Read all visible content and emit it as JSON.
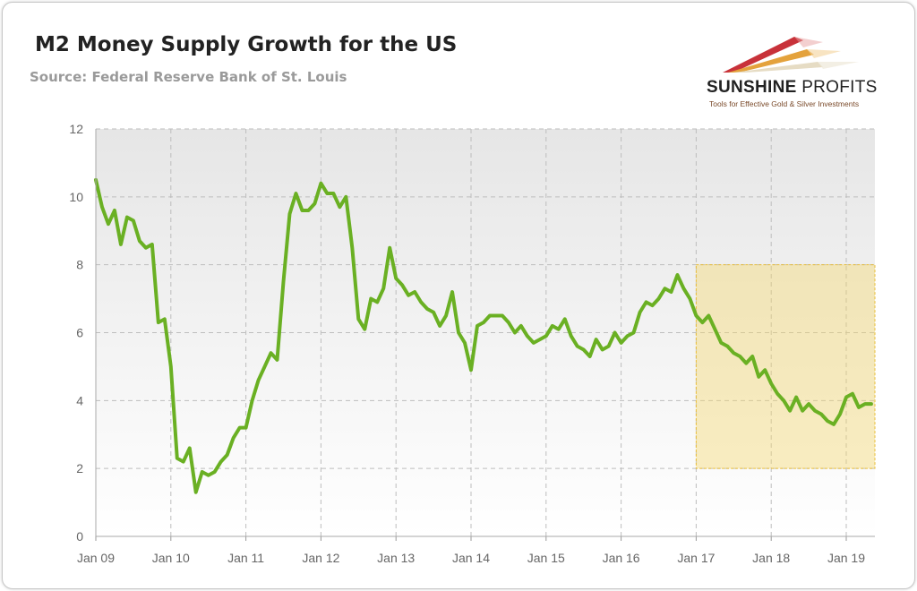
{
  "header": {
    "title": "M2 Money Supply Growth for the US",
    "subtitle": "Source: Federal Reserve Bank of St. Louis"
  },
  "logo": {
    "name_bold": "SUNSHINE",
    "name_light": "PROFITS",
    "tagline": "Tools for Effective Gold & Silver Investments"
  },
  "chart_data": {
    "type": "line",
    "title": "M2 Money Supply Growth for the US",
    "xlabel": "",
    "ylabel": "",
    "ylim": [
      0,
      12
    ],
    "y_ticks": [
      "0",
      "2",
      "4",
      "6",
      "8",
      "10",
      "12"
    ],
    "x_ticks": [
      "Jan 09",
      "Jan 10",
      "Jan 11",
      "Jan 12",
      "Jan 13",
      "Jan 14",
      "Jan 15",
      "Jan 16",
      "Jan 17",
      "Jan 18",
      "Jan 19"
    ],
    "grid": true,
    "line_color": "#6ab023",
    "highlight": {
      "x_start": "2017-01",
      "x_end": "2019-05",
      "y_range": [
        2,
        8
      ],
      "color": "#f5d86a"
    },
    "x_start": "2009-01",
    "frequency": "monthly",
    "values": [
      10.5,
      9.7,
      9.2,
      9.6,
      8.6,
      9.4,
      9.3,
      8.7,
      8.5,
      8.6,
      6.3,
      6.4,
      5.0,
      2.3,
      2.2,
      2.6,
      1.3,
      1.9,
      1.8,
      1.9,
      2.2,
      2.4,
      2.9,
      3.2,
      3.2,
      4.0,
      4.6,
      5.0,
      5.4,
      5.2,
      7.5,
      9.5,
      10.1,
      9.6,
      9.6,
      9.8,
      10.4,
      10.1,
      10.1,
      9.7,
      10.0,
      8.5,
      6.4,
      6.1,
      7.0,
      6.9,
      7.3,
      8.5,
      7.6,
      7.4,
      7.1,
      7.2,
      6.9,
      6.7,
      6.6,
      6.2,
      6.5,
      7.2,
      6.0,
      5.7,
      4.9,
      6.2,
      6.3,
      6.5,
      6.5,
      6.5,
      6.3,
      6.0,
      6.2,
      5.9,
      5.7,
      5.8,
      5.9,
      6.2,
      6.1,
      6.4,
      5.9,
      5.6,
      5.5,
      5.3,
      5.8,
      5.5,
      5.6,
      6.0,
      5.7,
      5.9,
      6.0,
      6.6,
      6.9,
      6.8,
      7.0,
      7.3,
      7.2,
      7.7,
      7.3,
      7.0,
      6.5,
      6.3,
      6.5,
      6.1,
      5.7,
      5.6,
      5.4,
      5.3,
      5.1,
      5.3,
      4.7,
      4.9,
      4.5,
      4.2,
      4.0,
      3.7,
      4.1,
      3.7,
      3.9,
      3.7,
      3.6,
      3.4,
      3.3,
      3.6,
      4.1,
      4.2,
      3.8,
      3.9,
      3.9
    ]
  }
}
